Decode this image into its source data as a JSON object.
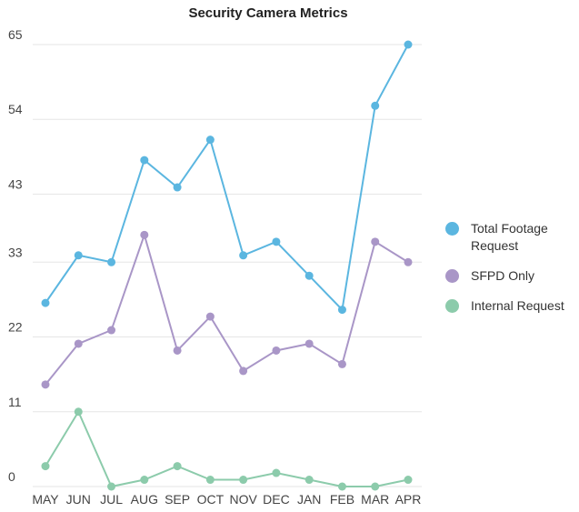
{
  "chart_data": {
    "type": "line",
    "title": "Security Camera Metrics",
    "xlabel": "",
    "ylabel": "",
    "categories": [
      "MAY",
      "JUN",
      "JUL",
      "AUG",
      "SEP",
      "OCT",
      "NOV",
      "DEC",
      "JAN",
      "FEB",
      "MAR",
      "APR"
    ],
    "y_ticks": [
      0,
      11,
      22,
      33,
      43,
      54,
      65
    ],
    "ylim": [
      0,
      65
    ],
    "grid": true,
    "legend_position": "right",
    "series": [
      {
        "name": "Total Footage Request",
        "color": "#5bb6e0",
        "values": [
          27,
          34,
          33,
          48,
          44,
          51,
          34,
          36,
          31,
          26,
          56,
          65
        ]
      },
      {
        "name": "SFPD Only",
        "color": "#a996c7",
        "values": [
          15,
          21,
          23,
          37,
          20,
          25,
          17,
          20,
          21,
          18,
          36,
          33
        ]
      },
      {
        "name": "Internal Request",
        "color": "#8ccbab",
        "values": [
          3,
          11,
          0,
          1,
          3,
          1,
          1,
          2,
          1,
          0,
          0,
          1
        ]
      }
    ]
  }
}
